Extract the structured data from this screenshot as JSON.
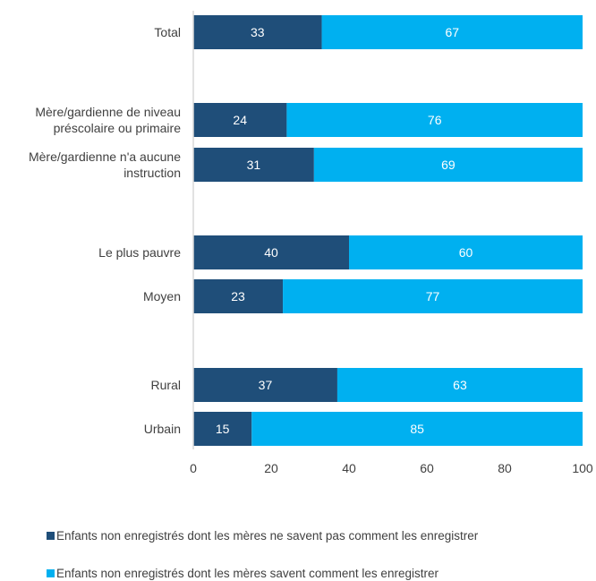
{
  "chart_data": {
    "type": "bar",
    "orientation": "horizontal",
    "stacked": true,
    "categories": [
      "Total",
      "Mère/gardienne de niveau préscolaire ou primaire",
      "Mère/gardienne n'a aucune instruction",
      "Le plus pauvre",
      "Moyen",
      "Rural",
      "Urbain"
    ],
    "category_lines": [
      [
        "Total"
      ],
      [
        "Mère/gardienne de niveau",
        "préscolaire ou primaire"
      ],
      [
        "Mère/gardienne n'a aucune",
        "instruction"
      ],
      [
        "Le plus pauvre"
      ],
      [
        "Moyen"
      ],
      [
        "Rural"
      ],
      [
        "Urbain"
      ]
    ],
    "series": [
      {
        "name": "Enfants non enregistrés dont les mères ne savent pas comment les enregistrer",
        "color": "#1f4e79",
        "values": [
          33,
          24,
          31,
          40,
          23,
          37,
          15
        ]
      },
      {
        "name": "Enfants non enregistrés dont les mères savent comment les enregistrer",
        "color": "#00b0f0",
        "values": [
          67,
          76,
          69,
          60,
          77,
          63,
          85
        ]
      }
    ],
    "xlim": [
      0,
      100
    ],
    "xticks": [
      0,
      20,
      40,
      60,
      80,
      100
    ],
    "title": "",
    "xlabel": "",
    "ylabel": "",
    "grid": false,
    "legend_position": "bottom"
  }
}
